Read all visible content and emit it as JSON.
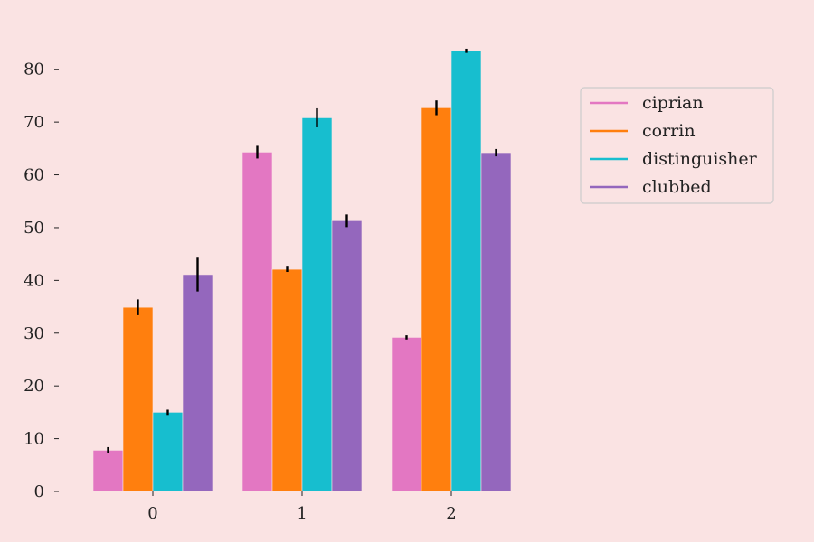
{
  "chart_data": {
    "type": "bar",
    "categories": [
      "0",
      "1",
      "2"
    ],
    "series": [
      {
        "name": "ciprian",
        "color": "#e377c2",
        "values": [
          7.8,
          64.3,
          29.2
        ],
        "errors": [
          0.6,
          1.2,
          0.4
        ]
      },
      {
        "name": "corrin",
        "color": "#ff7f0e",
        "values": [
          34.9,
          42.1,
          72.7
        ],
        "errors": [
          1.5,
          0.5,
          1.4
        ]
      },
      {
        "name": "distinguisher",
        "color": "#17becf",
        "values": [
          15.0,
          70.8,
          83.5
        ],
        "errors": [
          0.5,
          1.8,
          0.4
        ]
      },
      {
        "name": "clubbed",
        "color": "#9467bd",
        "values": [
          41.1,
          51.3,
          64.2
        ],
        "errors": [
          3.2,
          1.2,
          0.7
        ]
      }
    ],
    "y_ticks": [
      0,
      10,
      20,
      30,
      40,
      50,
      60,
      70,
      80
    ],
    "ylim": [
      0,
      88
    ],
    "title": "",
    "xlabel": "",
    "ylabel": "",
    "grid": false,
    "legend_position": "right"
  }
}
